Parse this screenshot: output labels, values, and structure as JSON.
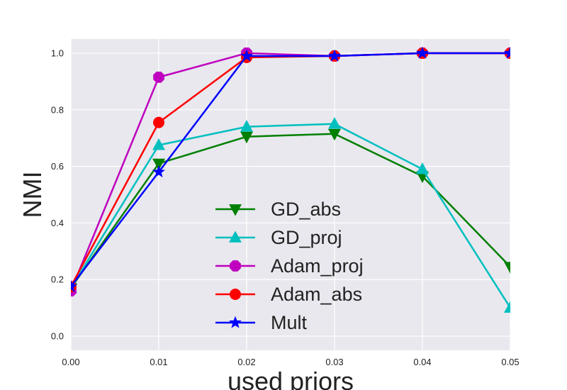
{
  "chart_data": {
    "type": "line",
    "xlabel": "used priors",
    "ylabel": "NMI",
    "x": [
      0.0,
      0.01,
      0.02,
      0.03,
      0.04,
      0.05
    ],
    "x_tick_labels": [
      "0.00",
      "0.01",
      "0.02",
      "0.03",
      "0.04",
      "0.05"
    ],
    "y_ticks": [
      0.0,
      0.2,
      0.4,
      0.6,
      0.8,
      1.0
    ],
    "y_tick_labels": [
      "0.0",
      "0.2",
      "0.4",
      "0.6",
      "0.8",
      "1.0"
    ],
    "xlim": [
      0.0,
      0.05
    ],
    "ylim": [
      -0.05,
      1.05
    ],
    "grid": true,
    "legend_position": "center",
    "background_color": "#e8e8ee",
    "grid_color": "#ffffff",
    "series": [
      {
        "name": "GD_abs",
        "color": "#007f00",
        "marker": "triangle-down",
        "values": [
          0.17,
          0.61,
          0.705,
          0.715,
          0.565,
          0.245
        ]
      },
      {
        "name": "GD_proj",
        "color": "#00bfbf",
        "marker": "triangle-up",
        "values": [
          0.17,
          0.675,
          0.74,
          0.75,
          0.59,
          0.1
        ]
      },
      {
        "name": "Adam_proj",
        "color": "#bf00bf",
        "marker": "octagon",
        "values": [
          0.16,
          0.915,
          1.0,
          0.99,
          1.0,
          1.0
        ]
      },
      {
        "name": "Adam_abs",
        "color": "#ff0000",
        "marker": "circle",
        "values": [
          0.175,
          0.755,
          0.985,
          0.99,
          1.0,
          1.0
        ]
      },
      {
        "name": "Mult",
        "color": "#0000ff",
        "marker": "star",
        "values": [
          0.175,
          0.58,
          0.99,
          0.99,
          1.0,
          1.0
        ]
      }
    ]
  }
}
